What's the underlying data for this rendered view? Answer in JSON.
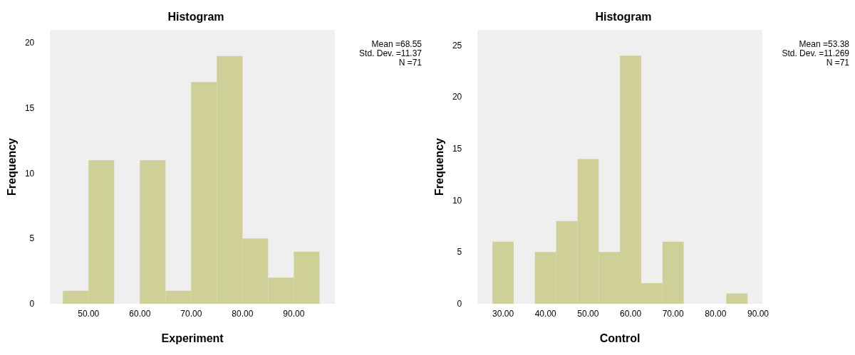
{
  "chart_data": [
    {
      "type": "histogram",
      "title": "Histogram",
      "xlabel": "Experiment",
      "ylabel": "Frequency",
      "color": "#cfcf98",
      "bins": [
        45,
        50,
        55,
        60,
        65,
        70,
        75,
        80,
        85,
        90,
        95
      ],
      "values": [
        1,
        11,
        0,
        11,
        1,
        17,
        19,
        5,
        2,
        4
      ],
      "xlim": [
        42.5,
        98
      ],
      "xticks": [
        {
          "value": 50,
          "label": "50.00"
        },
        {
          "value": 60,
          "label": "60.00"
        },
        {
          "value": 70,
          "label": "70.00"
        },
        {
          "value": 80,
          "label": "80.00"
        },
        {
          "value": 90,
          "label": "90.00"
        }
      ],
      "ylim": [
        0,
        21
      ],
      "yticks": [
        0,
        5,
        10,
        15,
        20
      ],
      "grid": false,
      "annotations": [
        "Mean =68.55",
        "Std. Dev. =11.37",
        "N =71"
      ]
    },
    {
      "type": "histogram",
      "title": "Histogram",
      "xlabel": "Control",
      "ylabel": "Frequency",
      "color": "#cfcf98",
      "bins": [
        27.5,
        32.5,
        37.5,
        42.5,
        47.5,
        52.5,
        57.5,
        62.5,
        67.5,
        72.5,
        77.5,
        82.5,
        87.5
      ],
      "values": [
        6,
        0,
        5,
        8,
        14,
        5,
        24,
        2,
        6,
        0,
        0,
        1
      ],
      "xlim": [
        24,
        91
      ],
      "xticks": [
        {
          "value": 30,
          "label": "30.00"
        },
        {
          "value": 40,
          "label": "40.00"
        },
        {
          "value": 50,
          "label": "50.00"
        },
        {
          "value": 60,
          "label": "60.00"
        },
        {
          "value": 70,
          "label": "70.00"
        },
        {
          "value": 80,
          "label": "80.00"
        },
        {
          "value": 90,
          "label": "90.00"
        }
      ],
      "ylim": [
        0,
        26.5
      ],
      "yticks": [
        0,
        5,
        10,
        15,
        20,
        25
      ],
      "grid": false,
      "annotations": [
        "Mean =53.38",
        "Std. Dev. =11.269",
        "N =71"
      ]
    }
  ]
}
